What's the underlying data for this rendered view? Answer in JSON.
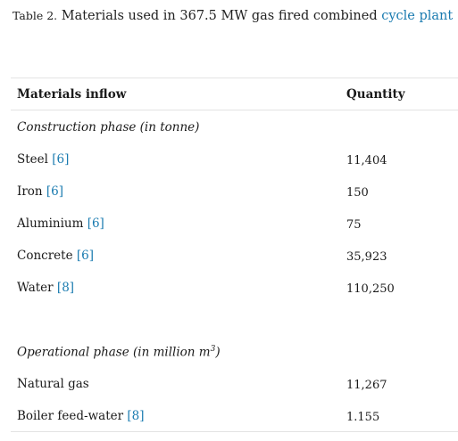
{
  "caption": {
    "label": "Table 2.",
    "text": "Materials used in 367.5 MW gas fired combined",
    "link": "cycle plant"
  },
  "table": {
    "headers": {
      "material": "Materials inflow",
      "quantity": "Quantity"
    },
    "construction": {
      "title": "Construction phase (in tonne)",
      "rows": [
        {
          "name": "Steel",
          "ref": "[6]",
          "value": "11,404"
        },
        {
          "name": "Iron",
          "ref": "[6]",
          "value": "150"
        },
        {
          "name": "Aluminium",
          "ref": "[6]",
          "value": "75"
        },
        {
          "name": "Concrete",
          "ref": "[6]",
          "value": "35,923"
        },
        {
          "name": "Water",
          "ref": "[8]",
          "value": "110,250"
        }
      ]
    },
    "operational": {
      "title": "Operational phase (in million m",
      "title_sup": "3",
      "title_end": ")",
      "rows": [
        {
          "name": "Natural gas",
          "ref": "",
          "value": "11,267"
        },
        {
          "name": "Boiler feed-water",
          "ref": "[8]",
          "value": "1.155"
        }
      ]
    }
  },
  "colors": {
    "link": "#1a7bb0",
    "rule": "#e3e3e3"
  }
}
